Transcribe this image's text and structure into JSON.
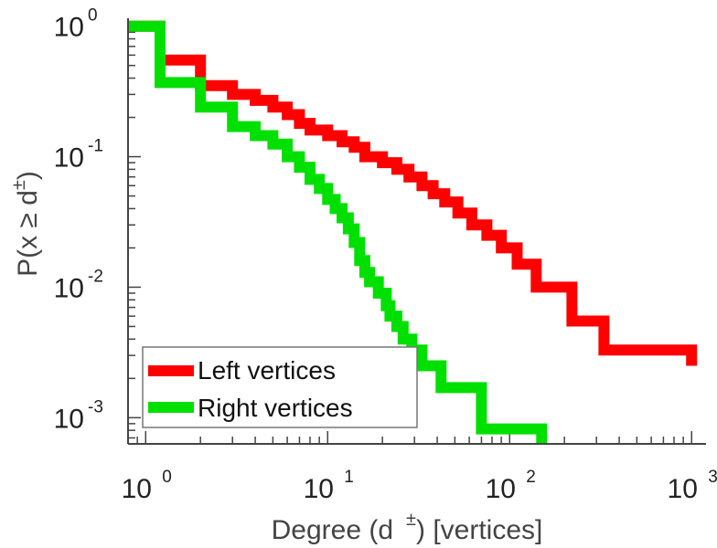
{
  "chart_data": {
    "type": "line",
    "step": true,
    "xscale": "log",
    "yscale": "log",
    "xlim": [
      0.8,
      1200
    ],
    "ylim": [
      0.00063,
      1.15
    ],
    "xticks": [
      {
        "mantissa": "10",
        "exp": "0",
        "value": 1
      },
      {
        "mantissa": "10",
        "exp": "1",
        "value": 10
      },
      {
        "mantissa": "10",
        "exp": "2",
        "value": 100
      },
      {
        "mantissa": "10",
        "exp": "3",
        "value": 1000
      }
    ],
    "yticks": [
      {
        "mantissa": "10",
        "exp": "0",
        "value": 1
      },
      {
        "mantissa": "10",
        "exp": "-1",
        "value": 0.1
      },
      {
        "mantissa": "10",
        "exp": "-2",
        "value": 0.01
      },
      {
        "mantissa": "10",
        "exp": "-3",
        "value": 0.001
      }
    ],
    "xlabel": {
      "pre": "Degree (d",
      "sup": "±",
      "post": ") [vertices]"
    },
    "ylabel": {
      "pre": "P(x ≥ d",
      "sup": "±",
      "post": ")"
    },
    "legend": "bottom-left",
    "grid": false,
    "series": [
      {
        "name": "Left vertices",
        "color": "#ff0000",
        "points": [
          [
            0.8,
            1.0
          ],
          [
            1.2,
            1.0
          ],
          [
            1.2,
            0.55
          ],
          [
            2.0,
            0.55
          ],
          [
            2.0,
            0.35
          ],
          [
            3.0,
            0.35
          ],
          [
            3.0,
            0.3
          ],
          [
            4.0,
            0.3
          ],
          [
            4.0,
            0.27
          ],
          [
            5.0,
            0.27
          ],
          [
            5.0,
            0.24
          ],
          [
            6.0,
            0.24
          ],
          [
            6.0,
            0.21
          ],
          [
            7.0,
            0.21
          ],
          [
            7.0,
            0.18
          ],
          [
            8.0,
            0.18
          ],
          [
            8.0,
            0.16
          ],
          [
            10.0,
            0.16
          ],
          [
            10.0,
            0.145
          ],
          [
            12.0,
            0.145
          ],
          [
            12.0,
            0.13
          ],
          [
            14.0,
            0.13
          ],
          [
            14.0,
            0.118
          ],
          [
            16.0,
            0.118
          ],
          [
            16.0,
            0.1
          ],
          [
            20.0,
            0.1
          ],
          [
            20.0,
            0.09
          ],
          [
            24.0,
            0.09
          ],
          [
            24.0,
            0.08
          ],
          [
            28.0,
            0.08
          ],
          [
            28.0,
            0.07
          ],
          [
            33.0,
            0.07
          ],
          [
            33.0,
            0.06
          ],
          [
            38.0,
            0.06
          ],
          [
            38.0,
            0.052
          ],
          [
            44.0,
            0.052
          ],
          [
            44.0,
            0.045
          ],
          [
            52.0,
            0.045
          ],
          [
            52.0,
            0.037
          ],
          [
            62.0,
            0.037
          ],
          [
            62.0,
            0.03
          ],
          [
            75.0,
            0.03
          ],
          [
            75.0,
            0.025
          ],
          [
            90.0,
            0.025
          ],
          [
            90.0,
            0.02
          ],
          [
            110.0,
            0.02
          ],
          [
            110.0,
            0.015
          ],
          [
            140.0,
            0.015
          ],
          [
            140.0,
            0.01
          ],
          [
            220.0,
            0.01
          ],
          [
            220.0,
            0.0055
          ],
          [
            330.0,
            0.0055
          ],
          [
            330.0,
            0.0033
          ],
          [
            1000.0,
            0.0033
          ],
          [
            1000.0,
            0.0025
          ]
        ]
      },
      {
        "name": "Right vertices",
        "color": "#00e000",
        "points": [
          [
            0.8,
            1.0
          ],
          [
            1.2,
            1.0
          ],
          [
            1.2,
            0.37
          ],
          [
            2.0,
            0.37
          ],
          [
            2.0,
            0.24
          ],
          [
            3.0,
            0.24
          ],
          [
            3.0,
            0.17
          ],
          [
            4.0,
            0.17
          ],
          [
            4.0,
            0.145
          ],
          [
            5.0,
            0.145
          ],
          [
            5.0,
            0.125
          ],
          [
            6.0,
            0.125
          ],
          [
            6.0,
            0.1
          ],
          [
            7.0,
            0.1
          ],
          [
            7.0,
            0.083
          ],
          [
            8.0,
            0.083
          ],
          [
            8.0,
            0.067
          ],
          [
            9.0,
            0.067
          ],
          [
            9.0,
            0.057
          ],
          [
            10.0,
            0.057
          ],
          [
            10.0,
            0.047
          ],
          [
            11.0,
            0.047
          ],
          [
            11.0,
            0.04
          ],
          [
            12.0,
            0.04
          ],
          [
            12.0,
            0.034
          ],
          [
            13.0,
            0.034
          ],
          [
            13.0,
            0.028
          ],
          [
            14.0,
            0.028
          ],
          [
            14.0,
            0.022
          ],
          [
            15.0,
            0.022
          ],
          [
            15.0,
            0.016
          ],
          [
            16.0,
            0.016
          ],
          [
            16.0,
            0.013
          ],
          [
            17.0,
            0.013
          ],
          [
            17.0,
            0.011
          ],
          [
            19.0,
            0.011
          ],
          [
            19.0,
            0.009
          ],
          [
            21.0,
            0.009
          ],
          [
            21.0,
            0.0072
          ],
          [
            22.0,
            0.0072
          ],
          [
            22.0,
            0.006
          ],
          [
            24.0,
            0.006
          ],
          [
            24.0,
            0.005
          ],
          [
            26.0,
            0.005
          ],
          [
            26.0,
            0.004
          ],
          [
            29.0,
            0.004
          ],
          [
            29.0,
            0.0033
          ],
          [
            33.0,
            0.0033
          ],
          [
            33.0,
            0.0025
          ],
          [
            42.0,
            0.0025
          ],
          [
            42.0,
            0.0017
          ],
          [
            70.0,
            0.0017
          ],
          [
            70.0,
            0.00082
          ],
          [
            150.0,
            0.00082
          ],
          [
            150.0,
            0.00063
          ]
        ]
      }
    ]
  }
}
